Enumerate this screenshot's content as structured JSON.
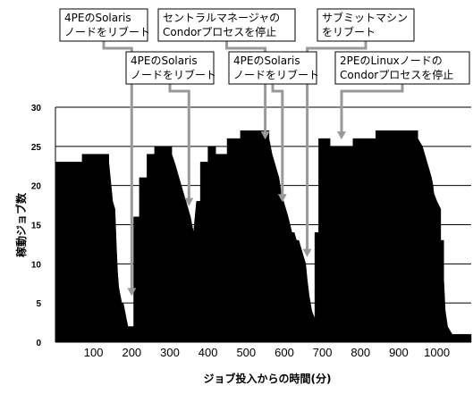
{
  "chart_data": {
    "type": "area",
    "xlabel": "ジョブ投入からの時間(分)",
    "ylabel": "稼動ジョブ数",
    "xlim": [
      0,
      1090
    ],
    "ylim": [
      0,
      30
    ],
    "xticks": [
      100,
      200,
      300,
      400,
      500,
      600,
      700,
      800,
      900,
      1000
    ],
    "yticks": [
      0,
      5,
      10,
      15,
      20,
      25,
      30
    ],
    "grid": "horizontal",
    "series": [
      {
        "color": "#000000",
        "x": [
          0,
          70,
          70,
          140,
          140,
          146,
          150,
          156,
          160,
          163,
          166,
          170,
          174,
          178,
          182,
          186,
          190,
          192,
          205,
          205,
          220,
          220,
          240,
          240,
          260,
          260,
          305,
          305,
          312,
          318,
          324,
          330,
          336,
          342,
          348,
          354,
          358,
          362,
          366,
          370,
          380,
          380,
          400,
          400,
          420,
          420,
          450,
          450,
          485,
          485,
          560,
          560,
          564,
          568,
          574,
          580,
          586,
          592,
          598,
          604,
          610,
          615,
          620,
          626,
          632,
          638,
          644,
          650,
          656,
          660,
          665,
          672,
          680,
          680,
          690,
          690,
          720,
          720,
          780,
          780,
          840,
          840,
          950,
          950,
          962,
          968,
          974,
          980,
          986,
          990,
          992,
          1000,
          1010,
          1010,
          1018,
          1018,
          1022,
          1028,
          1040,
          1040,
          1090
        ],
        "y": [
          23,
          23,
          24,
          24,
          23,
          20,
          18,
          17,
          12,
          9,
          7,
          6,
          5,
          5,
          4,
          3,
          2,
          2,
          2,
          16,
          16,
          21,
          21,
          24,
          24,
          25,
          25,
          24,
          23,
          22,
          21,
          20,
          19,
          18,
          17,
          16,
          15,
          14,
          16,
          18,
          18,
          23,
          23,
          25,
          25,
          24,
          24,
          26,
          26,
          27,
          27,
          26,
          25,
          24,
          23,
          22,
          21,
          19,
          18,
          17,
          16,
          15,
          14,
          14,
          13,
          13,
          12,
          11,
          10,
          8,
          6,
          4,
          3,
          14,
          14,
          26,
          26,
          25,
          25,
          26,
          26,
          27,
          27,
          26,
          25,
          24,
          23,
          22,
          21,
          20,
          19,
          18,
          17,
          13,
          13,
          8,
          4,
          2,
          1,
          1,
          1
        ]
      }
    ],
    "annotations": [
      {
        "lines": [
          "4PEのSolaris",
          "ノードをリブート"
        ],
        "x": 200,
        "y": 6
      },
      {
        "lines": [
          "4PEのSolaris",
          "ノードをリブート"
        ],
        "x": 350,
        "y": 17.5
      },
      {
        "lines": [
          "セントラルマネージャの",
          "Condorプロセスを停止"
        ],
        "x": 550,
        "y": 26
      },
      {
        "lines": [
          "4PEのSolaris",
          "ノードをリブート"
        ],
        "x": 595,
        "y": 18
      },
      {
        "lines": [
          "サブミットマシン",
          "をリブート"
        ],
        "x": 660,
        "y": 11
      },
      {
        "lines": [
          "2PEのLinuxノードの",
          "Condorプロセスを停止"
        ],
        "x": 750,
        "y": 26
      }
    ]
  }
}
